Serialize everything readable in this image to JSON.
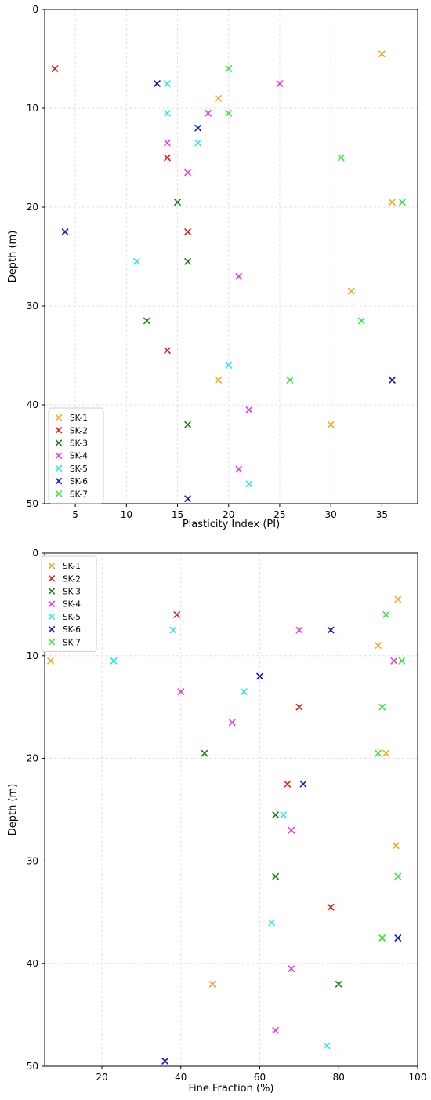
{
  "chart_data": [
    {
      "type": "scatter",
      "xlabel": "Plasticity Index (PI)",
      "ylabel": "Depth (m)",
      "xlim": [
        2,
        38.5
      ],
      "ylim": [
        50,
        0
      ],
      "y_inverted": true,
      "xticks": [
        5,
        10,
        15,
        20,
        25,
        30,
        35
      ],
      "yticks": [
        0,
        10,
        20,
        30,
        40,
        50
      ],
      "grid": true,
      "legend_position": "lower-left",
      "marker": "x",
      "series": [
        {
          "name": "SK-1",
          "color": "#f5a623",
          "points": [
            [
              35,
              4.5
            ],
            [
              19,
              9
            ],
            [
              36,
              19.5
            ],
            [
              32,
              28.5
            ],
            [
              19,
              37.5
            ],
            [
              30,
              42
            ]
          ]
        },
        {
          "name": "SK-2",
          "color": "#e31a1c",
          "points": [
            [
              3,
              6
            ],
            [
              14,
              15
            ],
            [
              16,
              22.5
            ],
            [
              14,
              34.5
            ]
          ]
        },
        {
          "name": "SK-3",
          "color": "#1a7f1a",
          "points": [
            [
              15,
              19.5
            ],
            [
              16,
              25.5
            ],
            [
              12,
              31.5
            ],
            [
              16,
              42
            ]
          ]
        },
        {
          "name": "SK-4",
          "color": "#e83ae8",
          "points": [
            [
              25,
              7.5
            ],
            [
              18,
              10.5
            ],
            [
              14,
              13.5
            ],
            [
              16,
              16.5
            ],
            [
              21,
              27
            ],
            [
              22,
              40.5
            ],
            [
              21,
              46.5
            ]
          ]
        },
        {
          "name": "SK-5",
          "color": "#2ee6e6",
          "points": [
            [
              14,
              7.5
            ],
            [
              14,
              10.5
            ],
            [
              17,
              13.5
            ],
            [
              11,
              25.5
            ],
            [
              20,
              36
            ],
            [
              22,
              48
            ]
          ]
        },
        {
          "name": "SK-6",
          "color": "#1515c8",
          "points": [
            [
              13,
              7.5
            ],
            [
              17,
              12
            ],
            [
              4,
              22.5
            ],
            [
              36,
              37.5
            ],
            [
              16,
              49.5
            ]
          ]
        },
        {
          "name": "SK-7",
          "color": "#3ae83a",
          "points": [
            [
              20,
              6
            ],
            [
              20,
              10.5
            ],
            [
              31,
              15
            ],
            [
              37,
              19.5
            ],
            [
              33,
              31.5
            ],
            [
              26,
              37.5
            ]
          ]
        }
      ]
    },
    {
      "type": "scatter",
      "xlabel": "Fine Fraction (%)",
      "ylabel": "Depth (m)",
      "xlim": [
        5.5,
        100
      ],
      "ylim": [
        50,
        0
      ],
      "y_inverted": true,
      "xticks": [
        20,
        40,
        60,
        80,
        100
      ],
      "yticks": [
        0,
        10,
        20,
        30,
        40,
        50
      ],
      "grid": true,
      "legend_position": "upper-left",
      "marker": "x",
      "series": [
        {
          "name": "SK-1",
          "color": "#f5a623",
          "points": [
            [
              95,
              4.5
            ],
            [
              90,
              9
            ],
            [
              7,
              10.5
            ],
            [
              92,
              19.5
            ],
            [
              94.5,
              28.5
            ],
            [
              48,
              42
            ]
          ]
        },
        {
          "name": "SK-2",
          "color": "#e31a1c",
          "points": [
            [
              39,
              6
            ],
            [
              70,
              15
            ],
            [
              67,
              22.5
            ],
            [
              78,
              34.5
            ]
          ]
        },
        {
          "name": "SK-3",
          "color": "#1a7f1a",
          "points": [
            [
              46,
              19.5
            ],
            [
              64,
              25.5
            ],
            [
              64,
              31.5
            ],
            [
              80,
              42
            ]
          ]
        },
        {
          "name": "SK-4",
          "color": "#e83ae8",
          "points": [
            [
              70,
              7.5
            ],
            [
              94,
              10.5
            ],
            [
              40,
              13.5
            ],
            [
              53,
              16.5
            ],
            [
              68,
              27
            ],
            [
              68,
              40.5
            ],
            [
              64,
              46.5
            ]
          ]
        },
        {
          "name": "SK-5",
          "color": "#2ee6e6",
          "points": [
            [
              38,
              7.5
            ],
            [
              23,
              10.5
            ],
            [
              56,
              13.5
            ],
            [
              66,
              25.5
            ],
            [
              63,
              36
            ],
            [
              77,
              48
            ]
          ]
        },
        {
          "name": "SK-6",
          "color": "#1515c8",
          "points": [
            [
              78,
              7.5
            ],
            [
              60,
              12
            ],
            [
              71,
              22.5
            ],
            [
              95,
              37.5
            ],
            [
              36,
              49.5
            ]
          ]
        },
        {
          "name": "SK-7",
          "color": "#3ae83a",
          "points": [
            [
              92,
              6
            ],
            [
              96,
              10.5
            ],
            [
              91,
              15
            ],
            [
              90,
              19.5
            ],
            [
              95,
              31.5
            ],
            [
              91,
              37.5
            ]
          ]
        }
      ]
    }
  ]
}
